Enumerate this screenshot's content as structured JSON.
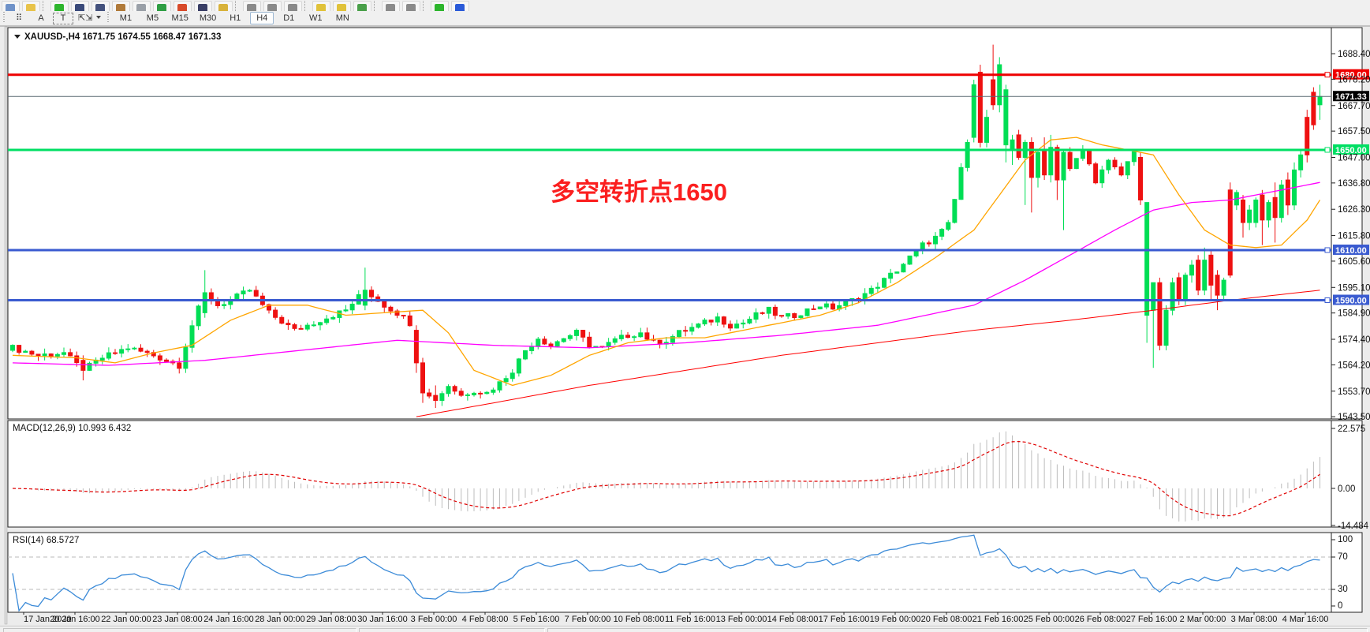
{
  "toolbar": {
    "row1_icons": [
      {
        "name": "new-chart-icon",
        "color": "#6f92c8"
      },
      {
        "name": "search-icon",
        "color": "#e8c34a"
      },
      {
        "name": "sep",
        "color": ""
      },
      {
        "name": "add-chart-icon",
        "color": "#2db52d"
      },
      {
        "name": "profiles-icon",
        "color": "#3a4a7a"
      },
      {
        "name": "market-watch-icon",
        "color": "#44527d"
      },
      {
        "name": "data-window-icon",
        "color": "#b07a3a"
      },
      {
        "name": "navigator-icon",
        "color": "#9aa0a8"
      },
      {
        "name": "terminal-icon",
        "color": "#2f9e44"
      },
      {
        "name": "strategy-tester-icon",
        "color": "#d84a2a"
      },
      {
        "name": "new-order-icon",
        "color": "#3a3f66"
      },
      {
        "name": "metaeditor-icon",
        "color": "#d8b23a"
      },
      {
        "name": "sep",
        "color": ""
      },
      {
        "name": "bar-spacing-icon",
        "color": "#8a8a8a"
      },
      {
        "name": "bar-shift-icon",
        "color": "#8a8a8a"
      },
      {
        "name": "bar-offset-icon",
        "color": "#8a8a8a"
      },
      {
        "name": "sep",
        "color": ""
      },
      {
        "name": "zoom-in-icon",
        "color": "#e0c23a"
      },
      {
        "name": "zoom-out-icon",
        "color": "#e0c23a"
      },
      {
        "name": "tile-windows-icon",
        "color": "#4aa04a"
      },
      {
        "name": "sep",
        "color": ""
      },
      {
        "name": "scale-left-icon",
        "color": "#8a8a8a"
      },
      {
        "name": "scale-right-icon",
        "color": "#8a8a8a"
      },
      {
        "name": "sep",
        "color": ""
      },
      {
        "name": "add-indicator-icon",
        "color": "#2db52d"
      },
      {
        "name": "refresh-icon",
        "color": "#2a5ad8"
      }
    ],
    "draw_tools": [
      {
        "name": "grid-tool",
        "label": "⠿"
      },
      {
        "name": "text-label-tool",
        "label": "A"
      },
      {
        "name": "text-box-tool",
        "label": "T"
      },
      {
        "name": "arrows-tool",
        "label": "⇱⇲"
      }
    ],
    "timeframes": [
      "M1",
      "M5",
      "M15",
      "M30",
      "H1",
      "H4",
      "D1",
      "W1",
      "MN"
    ],
    "active_timeframe": "H4"
  },
  "chart": {
    "title_symbol": "XAUUSD-,H4",
    "title_open": "1671.75",
    "title_high": "1674.55",
    "title_low": "1668.47",
    "title_close": "1671.33",
    "annotation": {
      "text": "多空转折点1650",
      "color": "#fb1f1f"
    },
    "colors": {
      "bull": "#00de55",
      "bear": "#ee1111",
      "hline_red": "#ee0000",
      "hline_green": "#00df63",
      "hline_blue": "#3a5bd0",
      "ma_fast": "#ffa500",
      "ma_mid": "#ff00ff",
      "ma_slow": "#ff0000",
      "current_line": "#5a6a72",
      "macd_hist": "#bdbdbd",
      "macd_signal": "#e00000",
      "rsi_line": "#3c8bd8",
      "level_dash": "#b9b9b9"
    },
    "price_axis_labels": [
      "1688.40",
      "1678.20",
      "1667.70",
      "1657.50",
      "1647.00",
      "1636.80",
      "1626.30",
      "1615.80",
      "1605.60",
      "1595.10",
      "1584.90",
      "1574.40",
      "1564.20",
      "1553.70",
      "1543.50"
    ],
    "hlines": [
      {
        "price": 1680.0,
        "label": "1680.00",
        "kind": "resistance",
        "colorKey": "hline_red"
      },
      {
        "price": 1650.0,
        "label": "1650.00",
        "kind": "pivot",
        "colorKey": "hline_green"
      },
      {
        "price": 1610.0,
        "label": "1610.00",
        "kind": "support",
        "colorKey": "hline_blue"
      },
      {
        "price": 1590.0,
        "label": "1590.00",
        "kind": "support",
        "colorKey": "hline_blue"
      }
    ],
    "current_price": {
      "value": 1671.33,
      "label": "1671.33"
    },
    "time_labels": [
      "17 Jan 2020",
      "20 Jan 16:00",
      "22 Jan 00:00",
      "23 Jan 08:00",
      "24 Jan 16:00",
      "28 Jan 00:00",
      "29 Jan 08:00",
      "30 Jan 16:00",
      "3 Feb 00:00",
      "4 Feb 08:00",
      "5 Feb 16:00",
      "7 Feb 00:00",
      "10 Feb 08:00",
      "11 Feb 16:00",
      "13 Feb 00:00",
      "14 Feb 08:00",
      "17 Feb 16:00",
      "19 Feb 00:00",
      "20 Feb 08:00",
      "21 Feb 16:00",
      "25 Feb 00:00",
      "26 Feb 08:00",
      "27 Feb 16:00",
      "2 Mar 00:00",
      "3 Mar 08:00",
      "4 Mar 16:00"
    ]
  },
  "macd": {
    "label": "MACD(12,26,9) 10.993 6.432",
    "axis_labels": [
      "22.575",
      "0.00",
      "-14.484"
    ],
    "axis_values": [
      22.575,
      0.0,
      -14.484
    ]
  },
  "rsi": {
    "label": "RSI(14) 68.5727",
    "axis_labels": [
      "100",
      "70",
      "30",
      "0"
    ],
    "levels": [
      70,
      30
    ]
  },
  "chart_data": {
    "type": "candlestick",
    "symbol": "XAUUSD",
    "timeframe": "H4",
    "title": "XAUUSD-,H4  O 1671.75  H 1674.55  L 1668.47  C 1671.33",
    "ylim": [
      1543.5,
      1688.4
    ],
    "bars": 205,
    "price_waypoints": [
      [
        0,
        1571
      ],
      [
        4,
        1568
      ],
      [
        8,
        1569
      ],
      [
        11,
        1562
      ],
      [
        14,
        1567
      ],
      [
        18,
        1571
      ],
      [
        22,
        1568
      ],
      [
        26,
        1564
      ],
      [
        28,
        1580
      ],
      [
        30,
        1593
      ],
      [
        32,
        1588
      ],
      [
        34,
        1590
      ],
      [
        37,
        1594
      ],
      [
        40,
        1585
      ],
      [
        44,
        1578
      ],
      [
        48,
        1582
      ],
      [
        52,
        1586
      ],
      [
        55,
        1594
      ],
      [
        58,
        1588
      ],
      [
        60,
        1585
      ],
      [
        62,
        1581
      ],
      [
        63,
        1565
      ],
      [
        64,
        1553
      ],
      [
        66,
        1550
      ],
      [
        68,
        1556
      ],
      [
        70,
        1552
      ],
      [
        72,
        1554
      ],
      [
        74,
        1553
      ],
      [
        76,
        1557
      ],
      [
        78,
        1562
      ],
      [
        80,
        1570
      ],
      [
        82,
        1575
      ],
      [
        84,
        1572
      ],
      [
        86,
        1575
      ],
      [
        88,
        1577
      ],
      [
        90,
        1572
      ],
      [
        92,
        1571
      ],
      [
        94,
        1574
      ],
      [
        96,
        1576
      ],
      [
        98,
        1577
      ],
      [
        100,
        1573
      ],
      [
        102,
        1574
      ],
      [
        104,
        1577
      ],
      [
        106,
        1579
      ],
      [
        108,
        1581
      ],
      [
        110,
        1583
      ],
      [
        112,
        1580
      ],
      [
        114,
        1581
      ],
      [
        116,
        1584
      ],
      [
        118,
        1586
      ],
      [
        120,
        1583
      ],
      [
        122,
        1584
      ],
      [
        124,
        1586
      ],
      [
        126,
        1588
      ],
      [
        128,
        1587
      ],
      [
        130,
        1589
      ],
      [
        132,
        1591
      ],
      [
        134,
        1594
      ],
      [
        136,
        1598
      ],
      [
        138,
        1602
      ],
      [
        140,
        1607
      ],
      [
        142,
        1612
      ],
      [
        144,
        1615
      ],
      [
        146,
        1620
      ],
      [
        147,
        1630
      ],
      [
        148,
        1643
      ],
      [
        149,
        1652
      ],
      [
        165,
        1642
      ],
      [
        167,
        1650
      ],
      [
        169,
        1638
      ],
      [
        171,
        1645
      ],
      [
        173,
        1640
      ],
      [
        175,
        1650
      ]
    ],
    "candle_overrides": {
      "11": [
        1566,
        1568,
        1558,
        1562
      ],
      "30": [
        1585,
        1602,
        1583,
        1593
      ],
      "55": [
        1588,
        1603,
        1586,
        1594
      ],
      "63": [
        1578,
        1580,
        1561,
        1565
      ],
      "64": [
        1565,
        1567,
        1549,
        1553
      ],
      "66": [
        1552,
        1556,
        1547,
        1550
      ],
      "150": [
        1655,
        1678,
        1653,
        1676
      ],
      "151": [
        1681,
        1684,
        1651,
        1653
      ],
      "152": [
        1653,
        1666,
        1651,
        1663
      ],
      "153": [
        1678,
        1692,
        1666,
        1668
      ],
      "154": [
        1668,
        1687,
        1665,
        1684
      ],
      "155": [
        1652,
        1676,
        1645,
        1674
      ],
      "156": [
        1650,
        1656,
        1644,
        1654
      ],
      "157": [
        1656,
        1658,
        1646,
        1647
      ],
      "158": [
        1647,
        1654,
        1628,
        1653
      ],
      "159": [
        1653,
        1655,
        1625,
        1639
      ],
      "160": [
        1639,
        1650,
        1635,
        1649
      ],
      "161": [
        1650,
        1655,
        1638,
        1640
      ],
      "162": [
        1640,
        1656,
        1637,
        1651
      ],
      "163": [
        1651,
        1652,
        1630,
        1638
      ],
      "164": [
        1638,
        1650,
        1618,
        1649
      ],
      "176": [
        1647,
        1649,
        1628,
        1630
      ],
      "177": [
        1584,
        1629,
        1573,
        1629
      ],
      "178": [
        1586,
        1597,
        1563,
        1597
      ],
      "179": [
        1597,
        1599,
        1570,
        1572
      ],
      "180": [
        1572,
        1588,
        1570,
        1586
      ],
      "181": [
        1586,
        1599,
        1584,
        1597
      ],
      "182": [
        1599,
        1601,
        1588,
        1590
      ],
      "183": [
        1590,
        1601,
        1588,
        1600
      ],
      "184": [
        1600,
        1606,
        1597,
        1604
      ],
      "185": [
        1606,
        1608,
        1592,
        1594
      ],
      "186": [
        1594,
        1611,
        1592,
        1606
      ],
      "187": [
        1608,
        1610,
        1590,
        1596
      ],
      "188": [
        1600,
        1602,
        1586,
        1592
      ],
      "189": [
        1592,
        1599,
        1590,
        1598
      ],
      "190": [
        1634,
        1637,
        1599,
        1600
      ],
      "191": [
        1628,
        1634,
        1626,
        1633
      ],
      "192": [
        1630,
        1632,
        1615,
        1621
      ],
      "193": [
        1621,
        1628,
        1618,
        1626
      ],
      "194": [
        1621,
        1631,
        1619,
        1630
      ],
      "195": [
        1632,
        1634,
        1612,
        1622
      ],
      "196": [
        1622,
        1630,
        1619,
        1629
      ],
      "197": [
        1631,
        1637,
        1613,
        1623
      ],
      "198": [
        1623,
        1638,
        1621,
        1636
      ],
      "199": [
        1638,
        1641,
        1624,
        1628
      ],
      "200": [
        1628,
        1645,
        1626,
        1642
      ],
      "201": [
        1642,
        1650,
        1639,
        1648
      ],
      "202": [
        1648,
        1666,
        1645,
        1663
      ],
      "203": [
        1660,
        1675,
        1658,
        1673
      ],
      "204": [
        1668,
        1676,
        1662,
        1671.33
      ]
    },
    "force_color": {
      "177": "up",
      "178": "up",
      "202": "dn",
      "203": "dn"
    },
    "ma_fast_waypoints": [
      [
        0,
        1568
      ],
      [
        10,
        1567
      ],
      [
        16,
        1565
      ],
      [
        22,
        1569
      ],
      [
        28,
        1572
      ],
      [
        34,
        1582
      ],
      [
        40,
        1588
      ],
      [
        46,
        1588
      ],
      [
        52,
        1584
      ],
      [
        58,
        1585
      ],
      [
        64,
        1586
      ],
      [
        68,
        1577
      ],
      [
        72,
        1562
      ],
      [
        78,
        1556
      ],
      [
        84,
        1560
      ],
      [
        90,
        1568
      ],
      [
        96,
        1573
      ],
      [
        102,
        1575
      ],
      [
        108,
        1575
      ],
      [
        114,
        1578
      ],
      [
        120,
        1581
      ],
      [
        126,
        1584
      ],
      [
        132,
        1589
      ],
      [
        138,
        1597
      ],
      [
        144,
        1607
      ],
      [
        150,
        1618
      ],
      [
        154,
        1632
      ],
      [
        158,
        1646
      ],
      [
        162,
        1654
      ],
      [
        166,
        1655
      ],
      [
        170,
        1652
      ],
      [
        174,
        1650
      ],
      [
        178,
        1648
      ],
      [
        182,
        1632
      ],
      [
        186,
        1618
      ],
      [
        190,
        1612
      ],
      [
        194,
        1611
      ],
      [
        198,
        1612
      ],
      [
        202,
        1622
      ],
      [
        204,
        1630
      ]
    ],
    "ma_mid_waypoints": [
      [
        0,
        1565
      ],
      [
        15,
        1564
      ],
      [
        30,
        1566
      ],
      [
        45,
        1570
      ],
      [
        60,
        1574
      ],
      [
        75,
        1572
      ],
      [
        90,
        1571
      ],
      [
        105,
        1573
      ],
      [
        120,
        1576
      ],
      [
        135,
        1580
      ],
      [
        150,
        1588
      ],
      [
        158,
        1598
      ],
      [
        165,
        1608
      ],
      [
        172,
        1618
      ],
      [
        178,
        1626
      ],
      [
        184,
        1629
      ],
      [
        190,
        1630
      ],
      [
        196,
        1633
      ],
      [
        204,
        1637
      ]
    ],
    "ma_slow_waypoints": [
      [
        63,
        1543.5
      ],
      [
        75,
        1549
      ],
      [
        90,
        1556
      ],
      [
        105,
        1562
      ],
      [
        120,
        1568
      ],
      [
        135,
        1573
      ],
      [
        150,
        1578
      ],
      [
        165,
        1582
      ],
      [
        178,
        1586
      ],
      [
        190,
        1590
      ],
      [
        204,
        1594
      ]
    ],
    "indicators": [
      {
        "name": "MACD",
        "params": "12,26,9",
        "values": [
          10.993,
          6.432
        ],
        "axis": [
          22.575,
          0.0,
          -14.484
        ]
      },
      {
        "name": "RSI",
        "params": "14",
        "values": [
          68.5727
        ],
        "levels": [
          70,
          30
        ]
      }
    ]
  }
}
